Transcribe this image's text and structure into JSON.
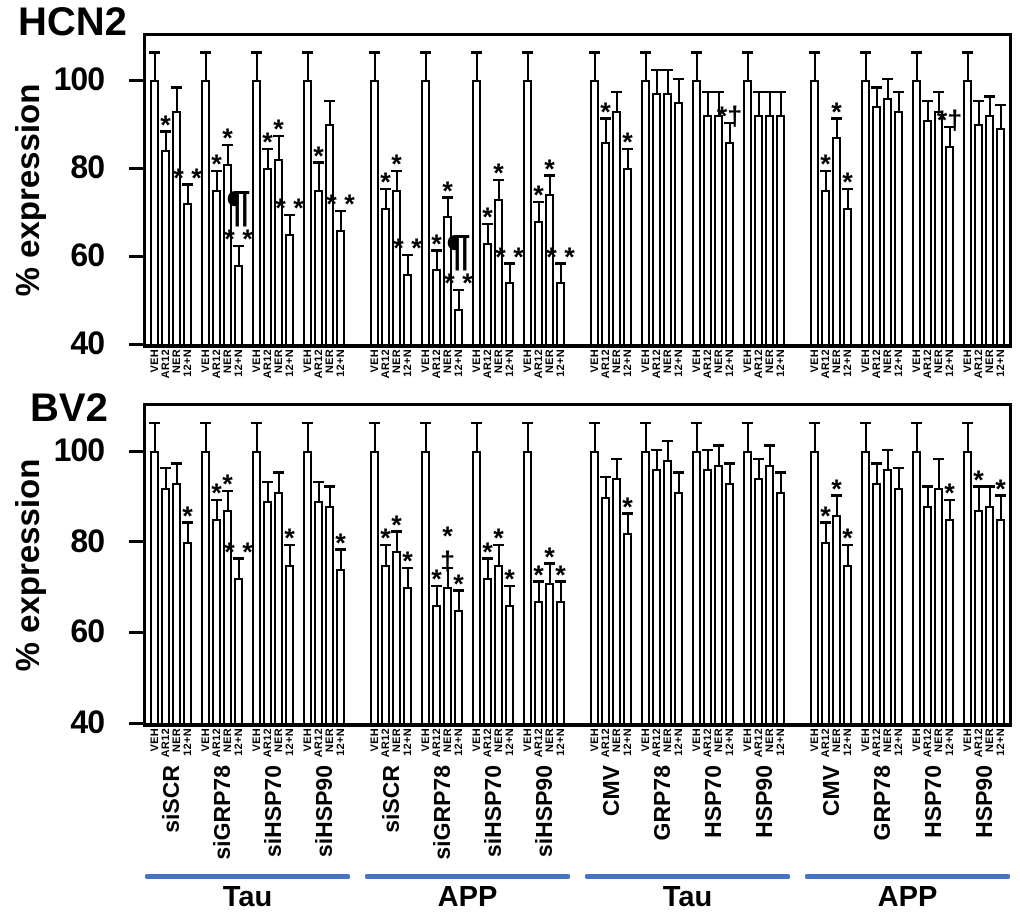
{
  "figure": {
    "background": "#ffffff",
    "ink": "#000000",
    "accent_blue": "#4472c4",
    "bar_labels": [
      "VEH",
      "AR12",
      "NER",
      "12+N"
    ]
  },
  "chart_data": [
    {
      "type": "bar",
      "title": "HCN2",
      "ylabel": "% expression",
      "ylim": [
        40,
        110
      ],
      "yticks": [
        100,
        80,
        60,
        40
      ],
      "grid": false,
      "legend": "none",
      "bar_categories": [
        "VEH",
        "AR12",
        "NER",
        "12+N"
      ],
      "clusters": [
        {
          "label": "Tau",
          "groups": [
            {
              "name": "siSCR",
              "values": [
                100,
                84,
                93,
                72
              ],
              "errors": [
                6,
                4,
                5,
                4
              ],
              "marks": [
                "",
                "*",
                "",
                "* *"
              ]
            },
            {
              "name": "siGRP78",
              "values": [
                100,
                75,
                81,
                58
              ],
              "errors": [
                6,
                4,
                4,
                4
              ],
              "marks": [
                "",
                "*",
                "*",
                "* *"
              ],
              "marks2": [
                "",
                "",
                "",
                "¶"
              ]
            },
            {
              "name": "siHSP70",
              "values": [
                100,
                80,
                82,
                65
              ],
              "errors": [
                6,
                4,
                5,
                4
              ],
              "marks": [
                "",
                "*",
                "*",
                "* *"
              ]
            },
            {
              "name": "siHSP90",
              "values": [
                100,
                75,
                90,
                66
              ],
              "errors": [
                6,
                6,
                5,
                4
              ],
              "marks": [
                "",
                "*",
                "",
                "* *"
              ]
            }
          ]
        },
        {
          "label": "APP",
          "groups": [
            {
              "name": "siSCR",
              "values": [
                100,
                71,
                75,
                56
              ],
              "errors": [
                6,
                4,
                4,
                4
              ],
              "marks": [
                "",
                "*",
                "*",
                "* *"
              ]
            },
            {
              "name": "siGRP78",
              "values": [
                100,
                57,
                69,
                48
              ],
              "errors": [
                6,
                4,
                4,
                4
              ],
              "marks": [
                "",
                "*",
                "*",
                "* *"
              ],
              "marks2": [
                "",
                "",
                "",
                "¶"
              ]
            },
            {
              "name": "siHSP70",
              "values": [
                100,
                63,
                73,
                54
              ],
              "errors": [
                6,
                4,
                4,
                4
              ],
              "marks": [
                "",
                "*",
                "*",
                "* *"
              ]
            },
            {
              "name": "siHSP90",
              "values": [
                100,
                68,
                74,
                54
              ],
              "errors": [
                6,
                4,
                4,
                4
              ],
              "marks": [
                "",
                "*",
                "*",
                "* *"
              ]
            }
          ]
        },
        {
          "label": "Tau",
          "groups": [
            {
              "name": "CMV",
              "values": [
                100,
                86,
                93,
                80
              ],
              "errors": [
                6,
                5,
                4,
                4
              ],
              "marks": [
                "",
                "*",
                "",
                "*"
              ]
            },
            {
              "name": "GRP78",
              "values": [
                100,
                97,
                97,
                95
              ],
              "errors": [
                6,
                5,
                5,
                5
              ],
              "marks": [
                "",
                "",
                "",
                ""
              ]
            },
            {
              "name": "HSP70",
              "values": [
                100,
                92,
                92,
                86
              ],
              "errors": [
                6,
                5,
                5,
                4
              ],
              "marks": [
                "",
                "",
                "",
                "*†"
              ]
            },
            {
              "name": "HSP90",
              "values": [
                100,
                92,
                92,
                92
              ],
              "errors": [
                6,
                5,
                5,
                5
              ],
              "marks": [
                "",
                "",
                "",
                ""
              ]
            }
          ]
        },
        {
          "label": "APP",
          "groups": [
            {
              "name": "CMV",
              "values": [
                100,
                75,
                87,
                71
              ],
              "errors": [
                6,
                4,
                4,
                4
              ],
              "marks": [
                "",
                "*",
                "*",
                "*"
              ]
            },
            {
              "name": "GRP78",
              "values": [
                100,
                94,
                96,
                93
              ],
              "errors": [
                6,
                4,
                4,
                4
              ],
              "marks": [
                "",
                "",
                "",
                ""
              ]
            },
            {
              "name": "HSP70",
              "values": [
                100,
                91,
                93,
                85
              ],
              "errors": [
                6,
                4,
                4,
                4
              ],
              "marks": [
                "",
                "",
                "",
                "*†"
              ]
            },
            {
              "name": "HSP90",
              "values": [
                100,
                90,
                92,
                89
              ],
              "errors": [
                6,
                5,
                4,
                5
              ],
              "marks": [
                "",
                "",
                "",
                ""
              ]
            }
          ]
        }
      ]
    },
    {
      "type": "bar",
      "title": "BV2",
      "ylabel": "% expression",
      "ylim": [
        40,
        110
      ],
      "yticks": [
        100,
        80,
        60,
        40
      ],
      "grid": false,
      "legend": "none",
      "bar_categories": [
        "VEH",
        "AR12",
        "NER",
        "12+N"
      ],
      "clusters": [
        {
          "label": "Tau",
          "groups": [
            {
              "name": "siSCR",
              "values": [
                100,
                92,
                93,
                80
              ],
              "errors": [
                6,
                4,
                4,
                4
              ],
              "marks": [
                "",
                "",
                "",
                "*"
              ]
            },
            {
              "name": "siGRP78",
              "values": [
                100,
                85,
                87,
                72
              ],
              "errors": [
                6,
                4,
                4,
                4
              ],
              "marks": [
                "",
                "*",
                "*",
                "* *"
              ]
            },
            {
              "name": "siHSP70",
              "values": [
                100,
                89,
                91,
                75
              ],
              "errors": [
                6,
                4,
                4,
                4
              ],
              "marks": [
                "",
                "",
                "",
                "*"
              ]
            },
            {
              "name": "siHSP90",
              "values": [
                100,
                89,
                88,
                74
              ],
              "errors": [
                6,
                4,
                4,
                4
              ],
              "marks": [
                "",
                "",
                "",
                "*"
              ]
            }
          ]
        },
        {
          "label": "APP",
          "groups": [
            {
              "name": "siSCR",
              "values": [
                100,
                75,
                78,
                70
              ],
              "errors": [
                6,
                4,
                4,
                4
              ],
              "marks": [
                "",
                "*",
                "*",
                "*"
              ]
            },
            {
              "name": "siGRP78",
              "values": [
                100,
                66,
                70,
                65
              ],
              "errors": [
                6,
                4,
                4,
                4
              ],
              "marks": [
                "",
                "*",
                "†",
                "*"
              ],
              "marks2": [
                "",
                "",
                "*",
                ""
              ]
            },
            {
              "name": "siHSP70",
              "values": [
                100,
                72,
                75,
                66
              ],
              "errors": [
                6,
                4,
                4,
                4
              ],
              "marks": [
                "",
                "*",
                "*",
                "*"
              ]
            },
            {
              "name": "siHSP90",
              "values": [
                100,
                67,
                71,
                67
              ],
              "errors": [
                6,
                4,
                4,
                4
              ],
              "marks": [
                "",
                "*",
                "*",
                "*"
              ]
            }
          ]
        },
        {
          "label": "Tau",
          "groups": [
            {
              "name": "CMV",
              "values": [
                100,
                90,
                94,
                82
              ],
              "errors": [
                6,
                4,
                4,
                4
              ],
              "marks": [
                "",
                "",
                "",
                "*"
              ]
            },
            {
              "name": "GRP78",
              "values": [
                100,
                96,
                98,
                91
              ],
              "errors": [
                6,
                4,
                4,
                4
              ],
              "marks": [
                "",
                "",
                "",
                ""
              ]
            },
            {
              "name": "HSP70",
              "values": [
                100,
                96,
                97,
                93
              ],
              "errors": [
                6,
                4,
                4,
                4
              ],
              "marks": [
                "",
                "",
                "",
                ""
              ]
            },
            {
              "name": "HSP90",
              "values": [
                100,
                94,
                97,
                91
              ],
              "errors": [
                6,
                4,
                4,
                4
              ],
              "marks": [
                "",
                "",
                "",
                ""
              ]
            }
          ]
        },
        {
          "label": "APP",
          "groups": [
            {
              "name": "CMV",
              "values": [
                100,
                80,
                86,
                75
              ],
              "errors": [
                6,
                4,
                4,
                4
              ],
              "marks": [
                "",
                "*",
                "*",
                "*"
              ]
            },
            {
              "name": "GRP78",
              "values": [
                100,
                93,
                96,
                92
              ],
              "errors": [
                6,
                4,
                4,
                4
              ],
              "marks": [
                "",
                "",
                "",
                ""
              ]
            },
            {
              "name": "HSP70",
              "values": [
                100,
                88,
                92,
                85
              ],
              "errors": [
                6,
                4,
                6,
                4
              ],
              "marks": [
                "",
                "",
                "",
                "*"
              ]
            },
            {
              "name": "HSP90",
              "values": [
                100,
                87,
                88,
                85
              ],
              "errors": [
                6,
                5,
                4,
                5
              ],
              "marks": [
                "",
                "*",
                "",
                "*"
              ]
            }
          ]
        }
      ]
    }
  ]
}
